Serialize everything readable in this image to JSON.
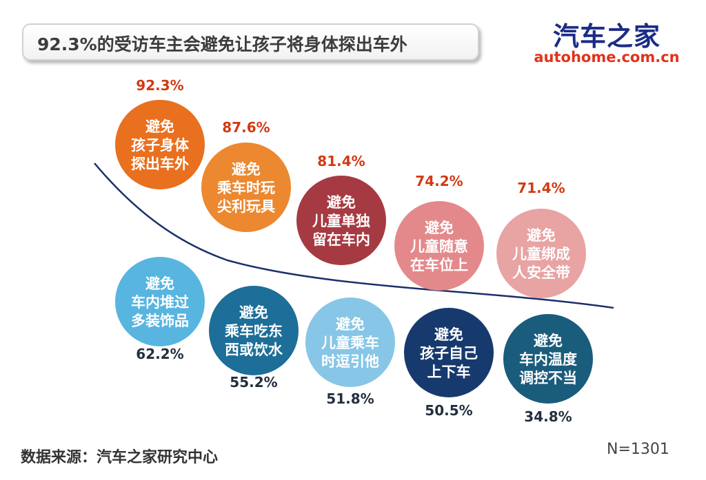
{
  "title": "92.3%的受访车主会避免让孩子将身体探出车外",
  "logo": {
    "cn": "汽车之家",
    "en": "autohome.com.cn"
  },
  "source": "数据来源：汽车之家研究中心",
  "sample_size": "N=1301",
  "chart_data": {
    "type": "bubble",
    "series": [
      {
        "group": "top",
        "items": [
          {
            "label": [
              "避免",
              "孩子身体",
              "探出车外"
            ],
            "value": "92.3%",
            "color": "#e8701e"
          },
          {
            "label": [
              "避免",
              "乘车时玩",
              "尖利玩具"
            ],
            "value": "87.6%",
            "color": "#ec8830"
          },
          {
            "label": [
              "避免",
              "儿童单独",
              "留在车内"
            ],
            "value": "81.4%",
            "color": "#a63a42"
          },
          {
            "label": [
              "避免",
              "儿童随意",
              "在车位上"
            ],
            "value": "74.2%",
            "color": "#e4898b"
          },
          {
            "label": [
              "避免",
              "儿童绑成",
              "人安全带"
            ],
            "value": "71.4%",
            "color": "#e8a3a3"
          }
        ]
      },
      {
        "group": "bottom",
        "items": [
          {
            "label": [
              "避免",
              "车内堆过",
              "多装饰品"
            ],
            "value": "62.2%",
            "color": "#58b5e0"
          },
          {
            "label": [
              "避免",
              "乘车吃东",
              "西或饮水"
            ],
            "value": "55.2%",
            "color": "#1d6e98"
          },
          {
            "label": [
              "避免",
              "儿童乘车",
              "时逗引他"
            ],
            "value": "51.8%",
            "color": "#87c6e6"
          },
          {
            "label": [
              "避免",
              "孩子自己",
              "上下车"
            ],
            "value": "50.5%",
            "color": "#173a6e"
          },
          {
            "label": [
              "避免",
              "车内温度",
              "调控不当"
            ],
            "value": "34.8%",
            "color": "#1a5c7c"
          }
        ]
      }
    ],
    "value_color_top": "#d23a12",
    "value_color_bottom": "#222f3e",
    "curve_color": "#1b2f6a"
  }
}
